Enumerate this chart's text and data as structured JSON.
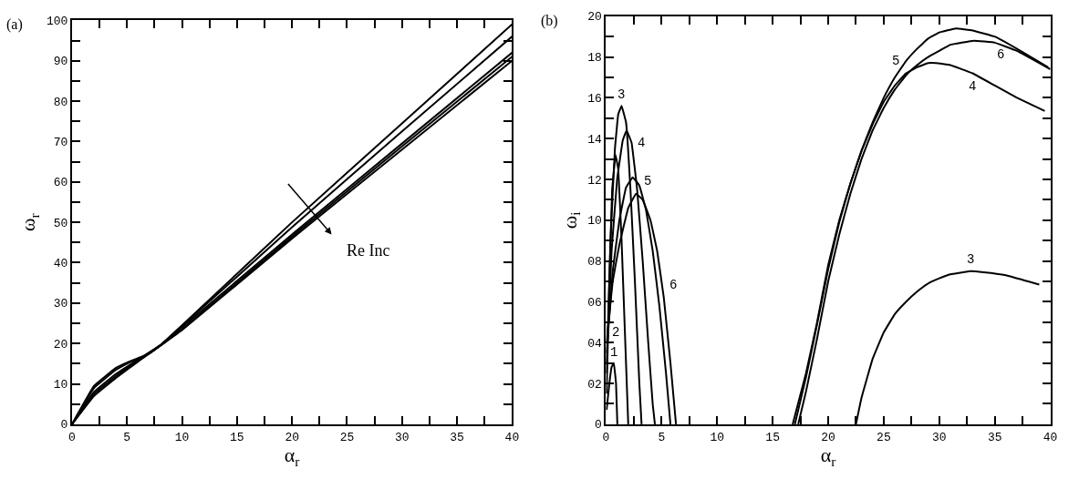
{
  "chart_data": [
    {
      "type": "line",
      "title": "(a)",
      "xlabel": "α$_{r}$",
      "ylabel": "ω$_{r}$",
      "xlim": [
        0,
        40
      ],
      "ylim": [
        0,
        100
      ],
      "legend": false,
      "marker": "none",
      "line_style": "solid",
      "xticks": [
        0,
        {
          "value": 2.5,
          "label": null
        },
        5,
        {
          "value": 7.5,
          "label": null
        },
        10,
        {
          "value": 12.5,
          "label": null
        },
        15,
        {
          "value": 17.5,
          "label": null
        },
        20,
        {
          "value": 22.5,
          "label": null
        },
        25,
        {
          "value": 27.5,
          "label": null
        },
        30,
        {
          "value": 32.5,
          "label": null
        },
        35,
        {
          "value": 37.5,
          "label": null
        },
        40
      ],
      "yticks": [
        0,
        {
          "value": 5,
          "label": null
        },
        10,
        {
          "value": 15,
          "label": null
        },
        20,
        {
          "value": 25,
          "label": null
        },
        30,
        {
          "value": 35,
          "label": null
        },
        40,
        {
          "value": 45,
          "label": null
        },
        50,
        {
          "value": 55,
          "label": null
        },
        60,
        {
          "value": 65,
          "label": null
        },
        70,
        {
          "value": 75,
          "label": null
        },
        80,
        {
          "value": 85,
          "label": null
        },
        90,
        {
          "value": 95,
          "label": null
        },
        100
      ],
      "series": [
        {
          "color": "#000000",
          "x": [
            0,
            2,
            4,
            6,
            8,
            10,
            20,
            30,
            40
          ],
          "values": [
            0,
            7,
            11.5,
            15.5,
            19.5,
            24.5,
            50,
            74.5,
            99
          ]
        },
        {
          "color": "#000000",
          "x": [
            0,
            2,
            4,
            6,
            8,
            10,
            20,
            30,
            40
          ],
          "values": [
            0,
            7.5,
            12,
            15.8,
            19.5,
            24.3,
            48.8,
            72.5,
            96
          ]
        },
        {
          "color": "#000000",
          "x": [
            0,
            2,
            4,
            6,
            8,
            10,
            20,
            30,
            40
          ],
          "values": [
            0,
            8,
            12.5,
            16,
            19.5,
            24,
            47,
            69.5,
            92
          ]
        },
        {
          "color": "#000000",
          "x": [
            0,
            2,
            4,
            5,
            7,
            10,
            20,
            30,
            40
          ],
          "values": [
            0,
            9,
            13.5,
            15,
            17.5,
            23.5,
            46.5,
            68.8,
            91
          ]
        },
        {
          "color": "#000000",
          "x": [
            0,
            2,
            4,
            5,
            7,
            10,
            20,
            30,
            40
          ],
          "values": [
            0,
            9.5,
            14,
            15.3,
            17.5,
            23.3,
            46,
            68,
            90
          ]
        }
      ],
      "annotations": [
        "Re Inc"
      ]
    },
    {
      "type": "line",
      "title": "(b)",
      "xlabel": "α$_{r}$",
      "ylabel": "ω$_{i}$",
      "xlim": [
        0,
        40
      ],
      "ylim": [
        0,
        20
      ],
      "marker": "none",
      "line_style": "solid",
      "xticks": [
        0,
        {
          "value": 2.5,
          "label": null
        },
        5,
        {
          "value": 7.5,
          "label": null
        },
        10,
        {
          "value": 12.5,
          "label": null
        },
        15,
        {
          "value": 17.5,
          "label": null
        },
        20,
        {
          "value": 22.5,
          "label": null
        },
        25,
        {
          "value": 27.5,
          "label": null
        },
        30,
        {
          "value": 32.5,
          "label": null
        },
        35,
        {
          "value": 37.5,
          "label": null
        },
        40
      ],
      "yticks": [
        0,
        {
          "value": 1,
          "label": null
        },
        {
          "value": 2,
          "label": "02"
        },
        {
          "value": 3,
          "label": null
        },
        {
          "value": 4,
          "label": "04"
        },
        {
          "value": 5,
          "label": null
        },
        {
          "value": 6,
          "label": "06"
        },
        {
          "value": 7,
          "label": null
        },
        {
          "value": 8,
          "label": "08"
        },
        {
          "value": 9,
          "label": null
        },
        10,
        {
          "value": 11,
          "label": null
        },
        12,
        {
          "value": 13,
          "label": null
        },
        14,
        {
          "value": 15,
          "label": null
        },
        16,
        {
          "value": 17,
          "label": null
        },
        18,
        {
          "value": 19,
          "label": null
        },
        20
      ],
      "series": [
        {
          "name": "1",
          "color": "#000000",
          "x": [
            0.05,
            0.3,
            0.5,
            0.7,
            0.9,
            1.02
          ],
          "values": [
            0.7,
            2.0,
            2.8,
            3.0,
            2.0,
            0
          ]
        },
        {
          "name": "2",
          "color": "#000000",
          "x": [
            0.05,
            0.3,
            0.55,
            0.85,
            1.1,
            1.4,
            1.7,
            2.0
          ],
          "values": [
            1.5,
            7,
            11.5,
            13.2,
            12.5,
            9,
            4.5,
            0
          ]
        },
        {
          "name": "3",
          "color": "#000000",
          "x": [
            0.05,
            0.4,
            0.8,
            1.1,
            1.4,
            1.8,
            2.2,
            2.6,
            3.0,
            3.2
          ],
          "values": [
            2.5,
            9,
            13.5,
            15.2,
            15.6,
            14.8,
            11.5,
            7,
            2,
            0
          ]
        },
        {
          "name": "4",
          "color": "#000000",
          "x": [
            0.05,
            0.5,
            1,
            1.5,
            1.85,
            2.3,
            2.8,
            3.3,
            3.8,
            4.2,
            4.4
          ],
          "values": [
            3,
            8.5,
            12,
            13.9,
            14.4,
            13.8,
            11.5,
            8,
            4,
            1,
            0
          ]
        },
        {
          "name": "5",
          "color": "#000000",
          "x": [
            0.05,
            0.6,
            1.2,
            1.8,
            2.4,
            3,
            3.6,
            4.2,
            4.8,
            5.4,
            5.8
          ],
          "values": [
            3.5,
            7.5,
            10,
            11.6,
            12.1,
            11.7,
            10.5,
            8.5,
            5.8,
            2.5,
            0
          ]
        },
        {
          "name": "6",
          "color": "#000000",
          "x": [
            0.05,
            0.6,
            1.2,
            2,
            2.7,
            3.3,
            4,
            4.6,
            5.2,
            5.8,
            6.3
          ],
          "values": [
            4,
            7,
            8.8,
            10.6,
            11.3,
            11,
            10,
            8.5,
            6.2,
            3,
            0
          ]
        },
        {
          "name": "5",
          "color": "#000000",
          "x": [
            16.8,
            18,
            19,
            20,
            21,
            22,
            23,
            24,
            25,
            26,
            27,
            28,
            29,
            30,
            31.5,
            33,
            35,
            37,
            39.8
          ],
          "values": [
            0,
            2.5,
            5,
            7.8,
            10,
            11.8,
            13.4,
            14.8,
            16,
            17,
            17.8,
            18.4,
            18.9,
            19.2,
            19.4,
            19.3,
            19,
            18.4,
            17.5
          ]
        },
        {
          "name": "4",
          "color": "#000000",
          "x": [
            17.0,
            18,
            19,
            20,
            21,
            22,
            23,
            24,
            25,
            26,
            27,
            28,
            29,
            29.7,
            31,
            33,
            35,
            37,
            39.5
          ],
          "values": [
            0,
            2.3,
            4.9,
            7.6,
            9.9,
            11.8,
            13.4,
            14.7,
            15.8,
            16.6,
            17.2,
            17.5,
            17.7,
            17.7,
            17.6,
            17.2,
            16.6,
            16,
            15.35
          ]
        },
        {
          "name": "6",
          "color": "#000000",
          "x": [
            17.3,
            18,
            19,
            20,
            21,
            22,
            23,
            24,
            25,
            26,
            27,
            28,
            29,
            30,
            31,
            33.1,
            35,
            37,
            40
          ],
          "values": [
            0,
            1.6,
            4.2,
            7,
            9.3,
            11.3,
            13,
            14.4,
            15.5,
            16.4,
            17.1,
            17.6,
            18.0,
            18.3,
            18.6,
            18.8,
            18.7,
            18.3,
            17.4
          ]
        },
        {
          "name": "3",
          "color": "#000000",
          "x": [
            22.5,
            23,
            24,
            25,
            26,
            27,
            28,
            29,
            30,
            31,
            32.8,
            34,
            36,
            38,
            39
          ],
          "values": [
            0,
            1.3,
            3.2,
            4.5,
            5.4,
            6.0,
            6.5,
            6.9,
            7.15,
            7.35,
            7.5,
            7.45,
            7.3,
            7.0,
            6.85
          ]
        }
      ],
      "legend": false
    }
  ]
}
